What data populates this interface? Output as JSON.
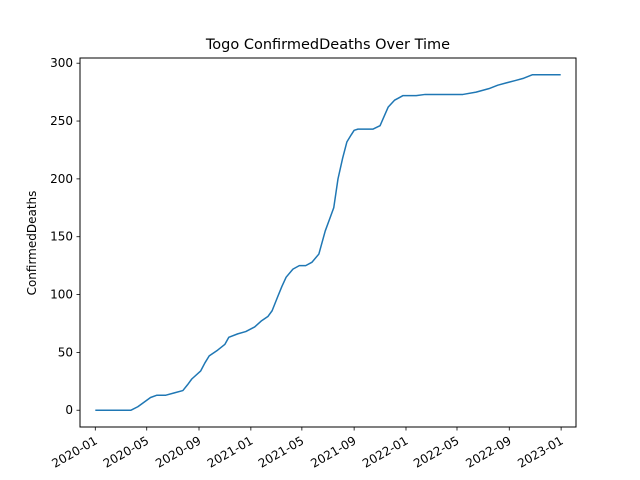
{
  "chart_data": {
    "type": "line",
    "title": "Togo  ConfirmedDeaths Over Time",
    "xlabel": "",
    "ylabel": "ConfirmedDeaths",
    "xlim": [
      "2019-11-26",
      "2023-02-05"
    ],
    "ylim": [
      -14.5,
      304.5
    ],
    "x_ticks": [
      "2020-01",
      "2020-05",
      "2020-09",
      "2021-01",
      "2021-05",
      "2021-09",
      "2022-01",
      "2022-05",
      "2022-09",
      "2023-01"
    ],
    "y_ticks": [
      0,
      50,
      100,
      150,
      200,
      250,
      300
    ],
    "grid": false,
    "legend": "none",
    "series": [
      {
        "color": "#1f77b4",
        "x": [
          "2020-01-01",
          "2020-03-25",
          "2020-04-10",
          "2020-04-25",
          "2020-05-10",
          "2020-05-25",
          "2020-06-15",
          "2020-07-05",
          "2020-07-25",
          "2020-08-05",
          "2020-08-15",
          "2020-09-05",
          "2020-09-15",
          "2020-09-25",
          "2020-10-15",
          "2020-11-01",
          "2020-11-10",
          "2020-12-01",
          "2020-12-20",
          "2021-01-10",
          "2021-01-25",
          "2021-02-10",
          "2021-02-20",
          "2021-03-05",
          "2021-03-15",
          "2021-03-25",
          "2021-04-10",
          "2021-04-25",
          "2021-05-10",
          "2021-05-25",
          "2021-06-10",
          "2021-06-25",
          "2021-07-05",
          "2021-07-15",
          "2021-07-25",
          "2021-08-05",
          "2021-08-15",
          "2021-08-25",
          "2021-09-01",
          "2021-09-10",
          "2021-09-20",
          "2021-10-01",
          "2021-10-15",
          "2021-11-01",
          "2021-11-20",
          "2021-12-05",
          "2021-12-15",
          "2021-12-25",
          "2022-01-10",
          "2022-01-25",
          "2022-02-15",
          "2022-03-15",
          "2022-04-15",
          "2022-05-15",
          "2022-06-15",
          "2022-07-15",
          "2022-08-05",
          "2022-08-25",
          "2022-09-15",
          "2022-10-05",
          "2022-10-25",
          "2022-11-15",
          "2022-12-31"
        ],
        "values": [
          0,
          0,
          3,
          7,
          11,
          13,
          13,
          15,
          17,
          22,
          27,
          34,
          41,
          47,
          52,
          57,
          63,
          66,
          68,
          72,
          77,
          81,
          86,
          98,
          107,
          115,
          122,
          125,
          125,
          128,
          135,
          155,
          165,
          175,
          200,
          218,
          232,
          238,
          242,
          243,
          243,
          243,
          243,
          246,
          262,
          268,
          270,
          272,
          272,
          272,
          273,
          273,
          273,
          273,
          275,
          278,
          281,
          283,
          285,
          287,
          290,
          290,
          290
        ]
      }
    ]
  }
}
